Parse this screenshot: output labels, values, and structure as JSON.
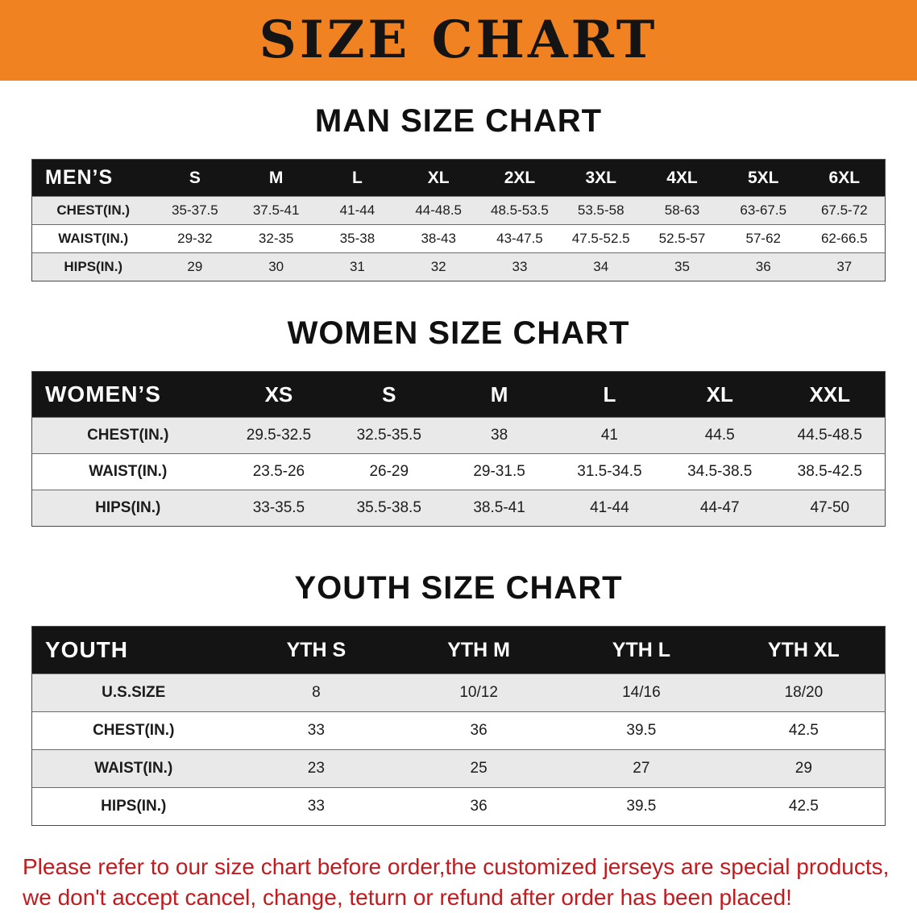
{
  "banner": {
    "title": "SIZE CHART",
    "bg_color": "#F08222",
    "text_color": "#141414"
  },
  "colors": {
    "table_header_bg": "#141414",
    "table_header_text": "#FFFFFF",
    "alt_row_bg": "#E9E9E9",
    "disclaimer_text": "#C11B1F"
  },
  "sections": [
    {
      "heading": "MAN SIZE CHART",
      "table": {
        "label": "MEN’S",
        "columns": [
          "S",
          "M",
          "L",
          "XL",
          "2XL",
          "3XL",
          "4XL",
          "5XL",
          "6XL"
        ],
        "rows": [
          {
            "label": "CHEST(IN.)",
            "values": [
              "35-37.5",
              "37.5-41",
              "41-44",
              "44-48.5",
              "48.5-53.5",
              "53.5-58",
              "58-63",
              "63-67.5",
              "67.5-72"
            ]
          },
          {
            "label": "WAIST(IN.)",
            "values": [
              "29-32",
              "32-35",
              "35-38",
              "38-43",
              "43-47.5",
              "47.5-52.5",
              "52.5-57",
              "57-62",
              "62-66.5"
            ]
          },
          {
            "label": "HIPS(IN.)",
            "values": [
              "29",
              "30",
              "31",
              "32",
              "33",
              "34",
              "35",
              "36",
              "37"
            ]
          }
        ]
      }
    },
    {
      "heading": "WOMEN SIZE CHART",
      "table": {
        "label": "WOMEN’S",
        "columns": [
          "XS",
          "S",
          "M",
          "L",
          "XL",
          "XXL"
        ],
        "rows": [
          {
            "label": "CHEST(IN.)",
            "values": [
              "29.5-32.5",
              "32.5-35.5",
              "38",
              "41",
              "44.5",
              "44.5-48.5"
            ]
          },
          {
            "label": "WAIST(IN.)",
            "values": [
              "23.5-26",
              "26-29",
              "29-31.5",
              "31.5-34.5",
              "34.5-38.5",
              "38.5-42.5"
            ]
          },
          {
            "label": "HIPS(IN.)",
            "values": [
              "33-35.5",
              "35.5-38.5",
              "38.5-41",
              "41-44",
              "44-47",
              "47-50"
            ]
          }
        ]
      }
    },
    {
      "heading": "YOUTH SIZE CHART",
      "table": {
        "label": "YOUTH",
        "columns": [
          "YTH S",
          "YTH M",
          "YTH L",
          "YTH XL"
        ],
        "rows": [
          {
            "label": "U.S.SIZE",
            "values": [
              "8",
              "10/12",
              "14/16",
              "18/20"
            ]
          },
          {
            "label": "CHEST(IN.)",
            "values": [
              "33",
              "36",
              "39.5",
              "42.5"
            ]
          },
          {
            "label": "WAIST(IN.)",
            "values": [
              "23",
              "25",
              "27",
              "29"
            ]
          },
          {
            "label": "HIPS(IN.)",
            "values": [
              "33",
              "36",
              "39.5",
              "42.5"
            ]
          }
        ]
      }
    }
  ],
  "disclaimer": {
    "line1": "Please refer to our size chart before order,the customized jerseys are special products,",
    "line2": "we don't accept cancel, change, teturn or refund after order has been placed!"
  }
}
